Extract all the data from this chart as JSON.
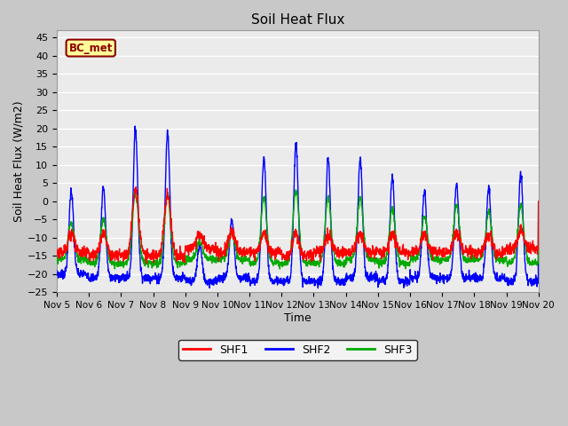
{
  "title": "Soil Heat Flux",
  "xlabel": "Time",
  "ylabel": "Soil Heat Flux (W/m2)",
  "ylim": [
    -25,
    47
  ],
  "yticks": [
    -25,
    -20,
    -15,
    -10,
    -5,
    0,
    5,
    10,
    15,
    20,
    25,
    30,
    35,
    40,
    45
  ],
  "annotation": "BC_met",
  "annotation_color": "#8B0000",
  "annotation_bg": "#FFFF99",
  "colors": {
    "SHF1": "#FF0000",
    "SHF2": "#0000FF",
    "SHF3": "#00AA00"
  },
  "legend_labels": [
    "SHF1",
    "SHF2",
    "SHF3"
  ],
  "fig_bg": "#C8C8C8",
  "plot_bg": "#EBEBEB",
  "linewidth": 1.0,
  "xtick_labels": [
    "Nov 5",
    "Nov 6",
    "Nov 7",
    "Nov 8",
    "Nov 9",
    "Nov 10",
    "Nov 11",
    "Nov 12",
    "Nov 13",
    "Nov 14",
    "Nov 15",
    "Nov 16",
    "Nov 17",
    "Nov 18",
    "Nov 19",
    "Nov 20"
  ],
  "n_days": 15,
  "pts_per_day": 144,
  "day_peaks_shf2": [
    23,
    25,
    41,
    40,
    10,
    16,
    34,
    38,
    34,
    33,
    29,
    24,
    26,
    25,
    30
  ],
  "day_baseline_shf2": [
    -20,
    -21,
    -21,
    -21,
    -22,
    -21,
    -22,
    -22,
    -22,
    -21,
    -22,
    -21,
    -21,
    -21,
    -22
  ],
  "day_peaks_shf1": [
    5,
    6,
    18,
    17,
    4,
    6,
    5,
    6,
    5,
    5,
    5,
    5,
    5,
    5,
    5
  ],
  "day_baseline_shf1": [
    -14,
    -15,
    -15,
    -15,
    -13,
    -14,
    -14,
    -15,
    -14,
    -14,
    -14,
    -14,
    -14,
    -14,
    -13
  ],
  "day_peaks_shf3": [
    10,
    12,
    20,
    19,
    5,
    8,
    18,
    20,
    18,
    17,
    15,
    12,
    15,
    13,
    16
  ],
  "day_baseline_shf3": [
    -16,
    -17,
    -17,
    -17,
    -16,
    -16,
    -17,
    -17,
    -17,
    -16,
    -17,
    -16,
    -16,
    -16,
    -17
  ]
}
